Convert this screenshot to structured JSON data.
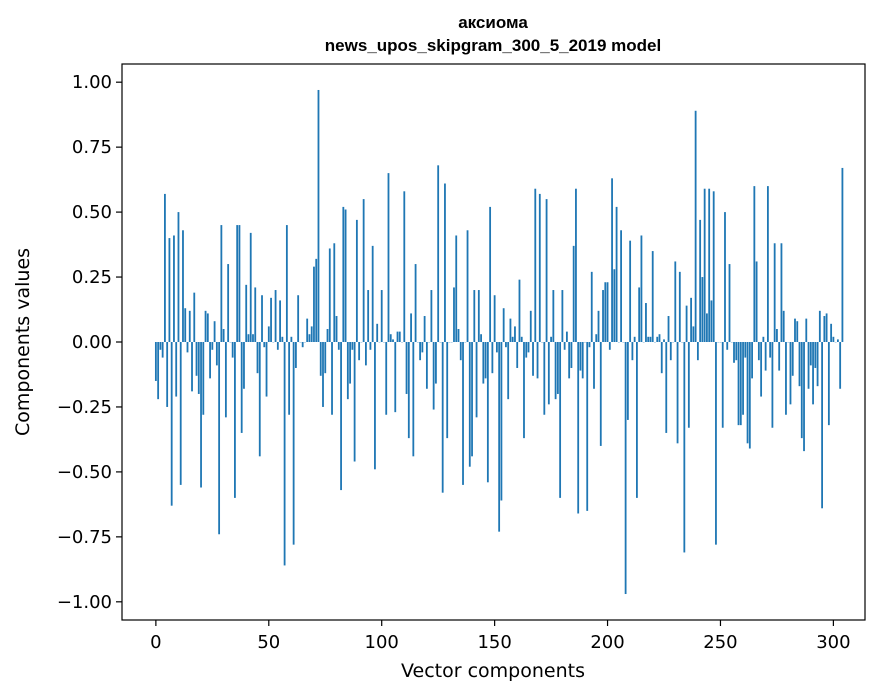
{
  "chart_data": {
    "type": "bar",
    "title": "аксиома",
    "subtitle": "news_upos_skipgram_300_5_2019 model",
    "xlabel": "Vector components",
    "ylabel": "Components values",
    "xlim": [
      -15,
      314
    ],
    "ylim": [
      -1.07,
      1.07
    ],
    "xticks": [
      0,
      50,
      100,
      150,
      200,
      250,
      300
    ],
    "xtick_labels": [
      "0",
      "50",
      "100",
      "150",
      "200",
      "250",
      "300"
    ],
    "yticks": [
      1.0,
      0.75,
      0.5,
      0.25,
      0.0,
      -0.25,
      -0.5,
      -0.75,
      -1.0
    ],
    "ytick_labels": [
      "1.00",
      "0.75",
      "0.50",
      "0.25",
      "0.00",
      "−0.25",
      "−0.50",
      "−0.75",
      "−1.00"
    ],
    "bar_color": "#1f77b4",
    "values": [
      -0.15,
      -0.22,
      -0.03,
      -0.06,
      0.57,
      -0.25,
      0.4,
      -0.63,
      0.41,
      -0.21,
      0.5,
      -0.55,
      0.43,
      0.13,
      -0.04,
      0.12,
      -0.19,
      0.19,
      -0.13,
      -0.2,
      -0.56,
      -0.28,
      0.12,
      0.11,
      -0.14,
      -0.03,
      0.08,
      -0.09,
      -0.74,
      0.45,
      0.05,
      -0.29,
      0.3,
      0.0,
      -0.06,
      -0.6,
      0.45,
      0.45,
      -0.35,
      -0.18,
      0.22,
      0.03,
      0.42,
      0.03,
      0.21,
      -0.12,
      -0.44,
      0.18,
      -0.02,
      -0.21,
      0.06,
      0.17,
      0.0,
      0.2,
      -0.03,
      0.16,
      0.02,
      -0.86,
      0.45,
      -0.28,
      0.02,
      -0.78,
      -0.1,
      0.18,
      0.0,
      -0.02,
      0.0,
      0.09,
      0.03,
      0.06,
      0.29,
      0.32,
      0.97,
      -0.13,
      -0.25,
      -0.12,
      0.05,
      0.36,
      -0.28,
      0.38,
      0.1,
      -0.03,
      -0.57,
      0.52,
      0.51,
      -0.22,
      -0.16,
      -0.03,
      -0.46,
      0.47,
      -0.07,
      0.0,
      0.55,
      -0.09,
      0.2,
      -0.03,
      0.37,
      -0.49,
      0.07,
      0.0,
      0.2,
      0.0,
      -0.28,
      0.65,
      0.03,
      0.01,
      -0.27,
      0.04,
      0.04,
      0.0,
      0.58,
      -0.2,
      -0.37,
      0.11,
      -0.44,
      0.3,
      0.0,
      -0.07,
      -0.04,
      0.1,
      -0.18,
      0.0,
      0.2,
      -0.26,
      -0.16,
      0.68,
      0.0,
      -0.58,
      0.61,
      -0.37,
      0.0,
      0.0,
      0.21,
      0.41,
      0.05,
      -0.07,
      -0.55,
      0.0,
      0.43,
      -0.48,
      -0.44,
      0.2,
      -0.29,
      0.2,
      0.03,
      -0.16,
      -0.14,
      -0.54,
      0.52,
      -0.12,
      0.18,
      -0.04,
      -0.73,
      -0.61,
      0.13,
      -0.02,
      -0.22,
      0.09,
      0.02,
      0.06,
      -0.1,
      0.24,
      0.02,
      -0.37,
      -0.06,
      -0.04,
      0.12,
      -0.13,
      0.59,
      -0.14,
      0.57,
      0.0,
      -0.28,
      0.55,
      -0.24,
      0.02,
      0.2,
      -0.22,
      -0.2,
      -0.6,
      0.2,
      -0.03,
      0.04,
      -0.14,
      -0.1,
      0.37,
      0.59,
      -0.66,
      -0.11,
      -0.14,
      0.0,
      -0.65,
      -0.02,
      0.27,
      -0.18,
      0.03,
      0.12,
      -0.4,
      0.2,
      0.23,
      0.23,
      -0.03,
      0.63,
      0.28,
      0.52,
      0.0,
      0.43,
      0.0,
      -0.97,
      -0.3,
      0.39,
      -0.07,
      0.02,
      -0.6,
      0.21,
      0.41,
      0.0,
      0.15,
      0.02,
      0.02,
      0.35,
      0.0,
      0.02,
      0.03,
      -0.12,
      0.01,
      -0.35,
      0.1,
      -0.07,
      0.0,
      0.31,
      -0.39,
      0.27,
      0.0,
      -0.81,
      0.14,
      -0.33,
      0.17,
      0.06,
      0.89,
      -0.07,
      0.47,
      0.25,
      0.59,
      0.11,
      0.59,
      0.16,
      0.58,
      -0.78,
      0.0,
      0.0,
      -0.33,
      0.5,
      -0.03,
      0.3,
      0.0,
      -0.08,
      -0.07,
      -0.32,
      -0.32,
      -0.28,
      -0.06,
      -0.39,
      -0.41,
      -0.14,
      0.6,
      0.31,
      -0.07,
      -0.21,
      0.02,
      -0.11,
      0.6,
      -0.06,
      -0.33,
      0.38,
      0.05,
      -0.11,
      0.38,
      0.12,
      -0.28,
      0.0,
      -0.24,
      -0.13,
      0.09,
      0.08,
      -0.17,
      -0.37,
      -0.42,
      0.09,
      -0.18,
      -0.09,
      -0.24,
      -0.1,
      -0.17,
      0.12,
      -0.64,
      0.1,
      0.11,
      -0.32,
      0.07,
      0.02,
      0.0,
      0.01,
      -0.18,
      0.67
    ]
  }
}
